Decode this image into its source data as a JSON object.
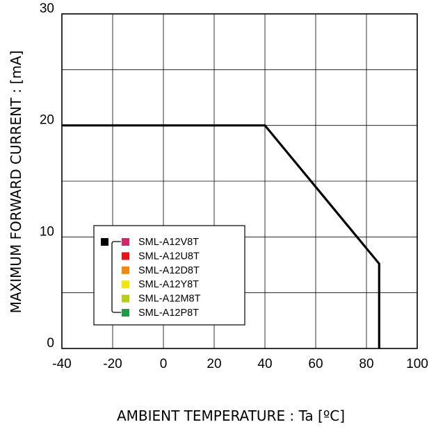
{
  "chart_data": {
    "type": "line",
    "title": "",
    "xlabel": "AMBIENT TEMPERATURE : Ta [ºC]",
    "ylabel": "MAXIMUM FORWARD CURRENT :  [mA]",
    "xlim": [
      -40,
      100
    ],
    "ylim": [
      0,
      30
    ],
    "x_ticks": [
      -40,
      -20,
      0,
      20,
      40,
      60,
      80,
      100
    ],
    "y_ticks": [
      0,
      10,
      20,
      30
    ],
    "x_tick_labels": [
      "-40",
      "-20",
      "0",
      "20",
      "40",
      "60",
      "80",
      "100"
    ],
    "y_tick_labels": [
      "0",
      "10",
      "20",
      "30"
    ],
    "grid": true,
    "legend_position": "center-left",
    "series": [
      {
        "color": "#000000",
        "x": [
          -40,
          40,
          85,
          85
        ],
        "y": [
          20,
          20,
          7.6,
          0
        ]
      }
    ],
    "legend": {
      "group_marker_color": "#000000",
      "entries": [
        {
          "label": "SML-A12V8T",
          "color": "#D6246B"
        },
        {
          "label": "SML-A12U8T",
          "color": "#E5131A"
        },
        {
          "label": "SML-A12D8T",
          "color": "#EE8A14"
        },
        {
          "label": "SML-A12Y8T",
          "color": "#F2E50F"
        },
        {
          "label": "SML-A12M8T",
          "color": "#B8CC1A"
        },
        {
          "label": "SML-A12P8T",
          "color": "#1E9E44"
        }
      ]
    }
  }
}
